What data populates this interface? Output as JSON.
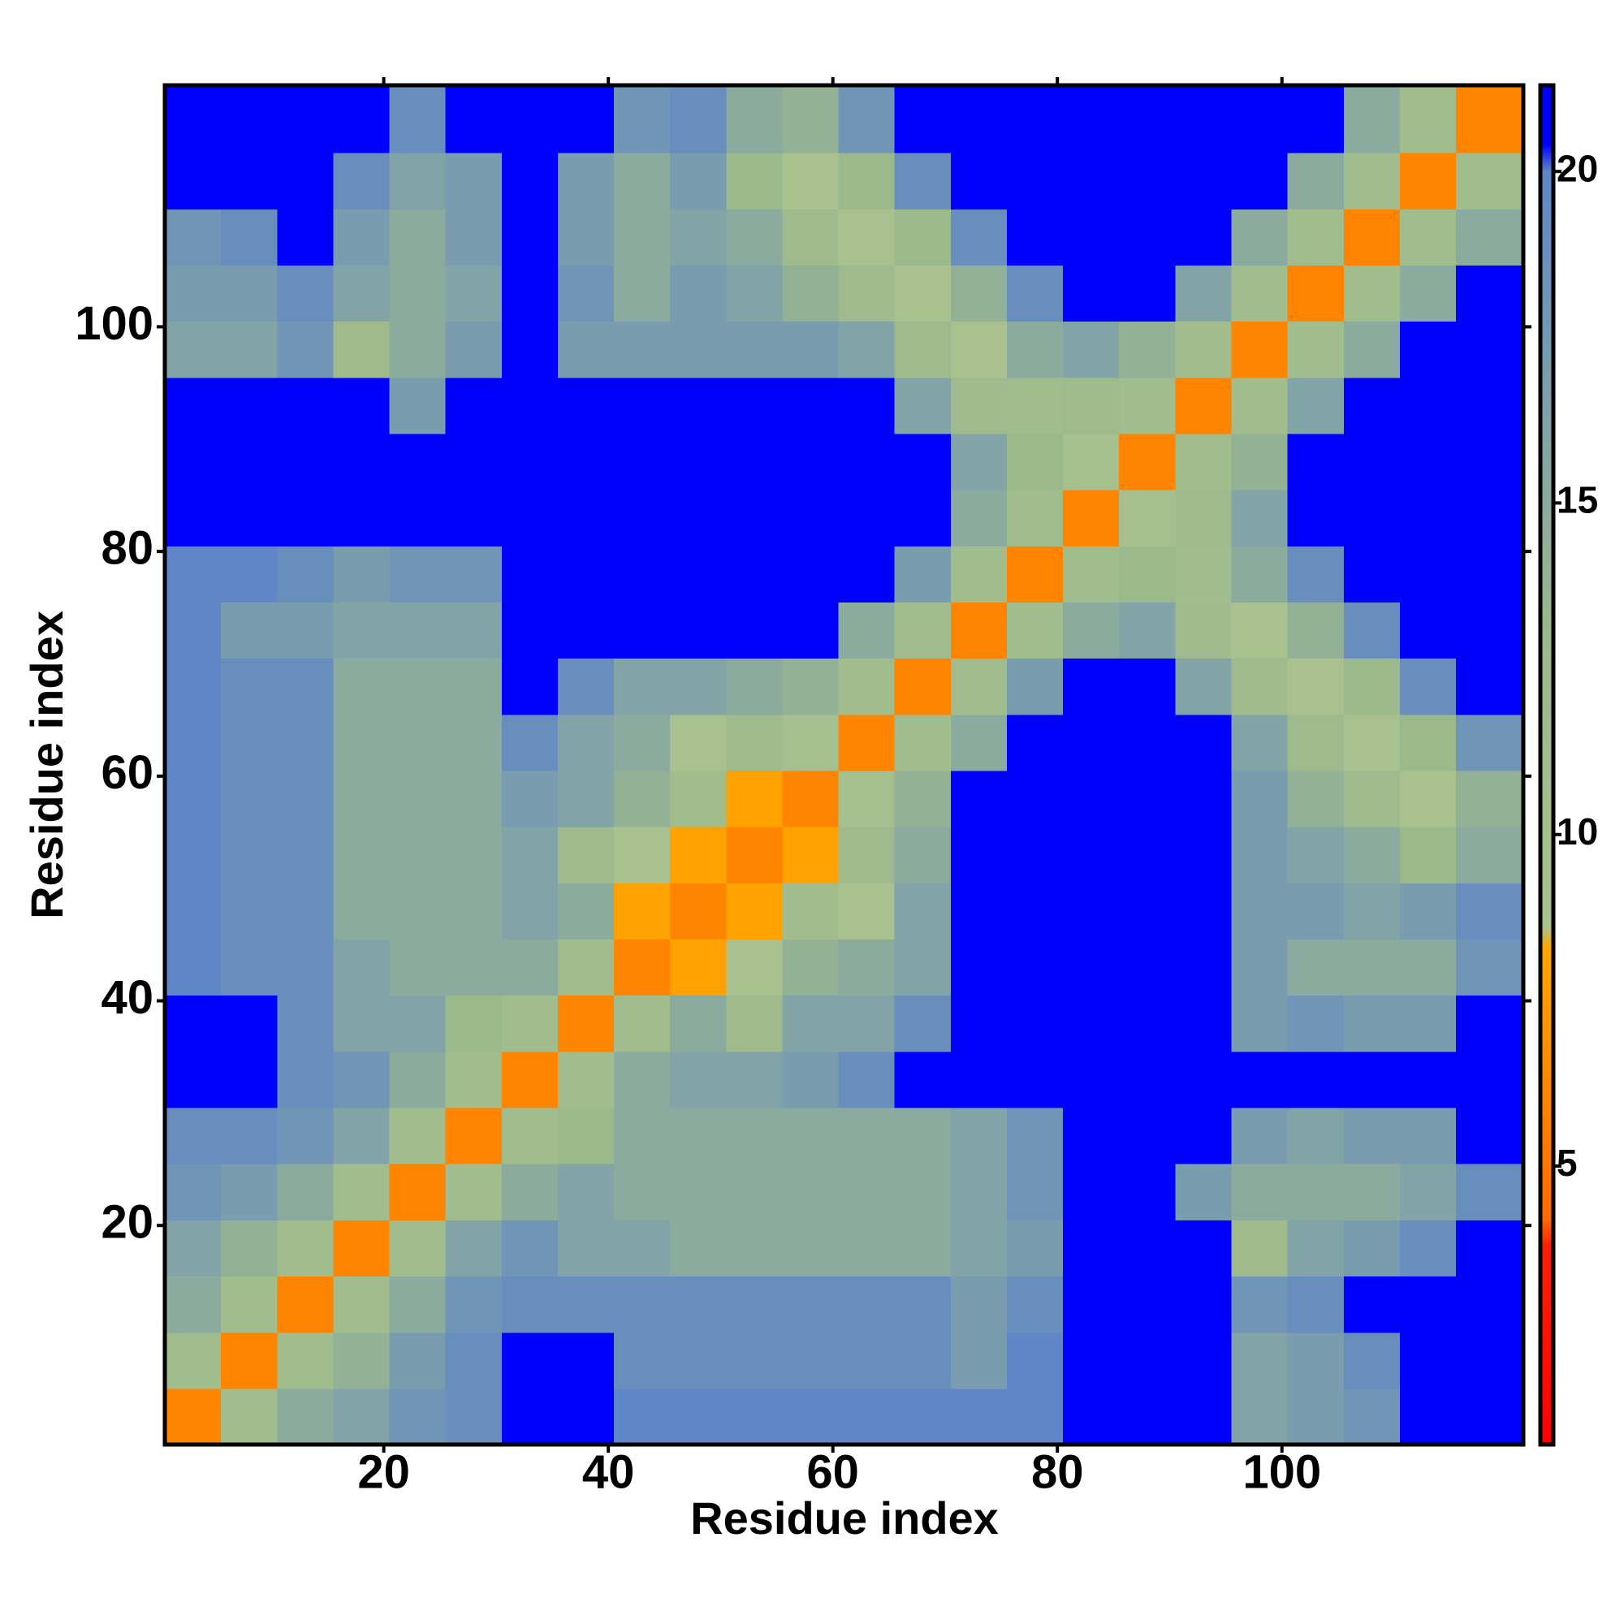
{
  "chart_data": {
    "type": "heatmap",
    "xlabel": "Residue index",
    "ylabel": "Residue index",
    "xlim": [
      0.5,
      121.5
    ],
    "ylim": [
      0.5,
      121.5
    ],
    "xticks": [
      20,
      40,
      60,
      80,
      100
    ],
    "yticks": [
      20,
      40,
      60,
      80,
      100
    ],
    "x_edges": [
      0.5,
      5.5,
      10.5,
      15.5,
      20.5,
      25.5,
      30.5,
      35.5,
      40.5,
      45.5,
      50.5,
      55.5,
      60.5,
      65.5,
      70.5,
      75.5,
      80.5,
      85.5,
      90.5,
      95.5,
      100.5,
      105.5,
      110.5,
      115.5,
      121.5
    ],
    "y_edges": [
      0.5,
      5.5,
      10.5,
      15.5,
      20.5,
      25.5,
      30.5,
      35.5,
      40.5,
      45.5,
      50.5,
      55.5,
      60.5,
      65.5,
      70.5,
      75.5,
      80.5,
      85.5,
      90.5,
      95.5,
      100.5,
      105.5,
      110.5,
      115.5,
      121.5
    ],
    "clim": [
      0.8,
      21.3
    ],
    "cticks": [
      5,
      10,
      15,
      20
    ],
    "colorscale": [
      [
        0.8,
        "#ff0000"
      ],
      [
        3.8,
        "#ff2000"
      ],
      [
        4.2,
        "#ff6a00"
      ],
      [
        8.3,
        "#ffa500"
      ],
      [
        8.6,
        "#a9c28f"
      ],
      [
        13,
        "#9cb98c"
      ],
      [
        15.5,
        "#86a8a2"
      ],
      [
        20,
        "#5f86c6"
      ],
      [
        20.4,
        "#0000ff"
      ],
      [
        21.3,
        "#0000ff"
      ]
    ],
    "z": [
      [
        6,
        11,
        15,
        16,
        18,
        19,
        21,
        21,
        20,
        20,
        20,
        20,
        20,
        20,
        20,
        20,
        21,
        21,
        21,
        16,
        17,
        18,
        21,
        21
      ],
      [
        11,
        6,
        11,
        14,
        17,
        19,
        21,
        21,
        19,
        19,
        19,
        19,
        19,
        19,
        17,
        20,
        21,
        21,
        21,
        16,
        17,
        19,
        21,
        21
      ],
      [
        15,
        11,
        6,
        11,
        15,
        18,
        19,
        19,
        19,
        19,
        19,
        19,
        19,
        19,
        17,
        19,
        21,
        21,
        21,
        18,
        19,
        21,
        21,
        21
      ],
      [
        16,
        14,
        11,
        6,
        11,
        16,
        18,
        16,
        16,
        15,
        15,
        15,
        15,
        15,
        16,
        17,
        21,
        21,
        21,
        12,
        16,
        17,
        19,
        21
      ],
      [
        18,
        17,
        15,
        11,
        6,
        11,
        15,
        16,
        15,
        15,
        15,
        15,
        15,
        15,
        16,
        18,
        21,
        21,
        17,
        15,
        15,
        15,
        16,
        19
      ],
      [
        19,
        19,
        18,
        16,
        11,
        6,
        11,
        13,
        15,
        15,
        15,
        15,
        15,
        15,
        16,
        18,
        21,
        21,
        21,
        17,
        16,
        17,
        17,
        21
      ],
      [
        21,
        21,
        19,
        18,
        15,
        11,
        6,
        11,
        15,
        16,
        16,
        17,
        19,
        21,
        21,
        21,
        21,
        21,
        21,
        21,
        21,
        21,
        21,
        21
      ],
      [
        21,
        21,
        19,
        16,
        16,
        13,
        11,
        6,
        11,
        15,
        12,
        16,
        16,
        19,
        21,
        21,
        21,
        21,
        21,
        17,
        18,
        17,
        17,
        21
      ],
      [
        20,
        19,
        19,
        16,
        15,
        15,
        15,
        11,
        6,
        8,
        9,
        14,
        15,
        16,
        21,
        21,
        21,
        21,
        21,
        17,
        15,
        15,
        15,
        18
      ],
      [
        20,
        19,
        19,
        15,
        15,
        15,
        16,
        15,
        8,
        6,
        8,
        11,
        9,
        16,
        21,
        21,
        21,
        21,
        21,
        17,
        17,
        16,
        17,
        19
      ],
      [
        20,
        19,
        19,
        15,
        15,
        15,
        16,
        12,
        9,
        8,
        6,
        8,
        12,
        15,
        21,
        21,
        21,
        21,
        21,
        17,
        16,
        15,
        13,
        15
      ],
      [
        20,
        19,
        19,
        15,
        15,
        15,
        17,
        16,
        14,
        11,
        8,
        6,
        10,
        14,
        21,
        21,
        21,
        21,
        21,
        17,
        14,
        12,
        9,
        14
      ],
      [
        20,
        19,
        19,
        15,
        15,
        15,
        19,
        16,
        15,
        9,
        12,
        10,
        6,
        11,
        15,
        21,
        21,
        21,
        21,
        16,
        12,
        9,
        13,
        18
      ],
      [
        20,
        19,
        19,
        15,
        15,
        15,
        21,
        19,
        16,
        16,
        15,
        14,
        11,
        6,
        11,
        17,
        21,
        21,
        16,
        12,
        9,
        13,
        19,
        21
      ],
      [
        20,
        17,
        17,
        16,
        16,
        16,
        21,
        21,
        21,
        21,
        21,
        21,
        15,
        11,
        6,
        11,
        15,
        16,
        12,
        9,
        14,
        19,
        21,
        21
      ],
      [
        20,
        20,
        19,
        17,
        18,
        18,
        21,
        21,
        21,
        21,
        21,
        21,
        21,
        17,
        11,
        6,
        11,
        13,
        11,
        15,
        19,
        21,
        21,
        21
      ],
      [
        21,
        21,
        21,
        21,
        21,
        21,
        21,
        21,
        21,
        21,
        21,
        21,
        21,
        21,
        15,
        11,
        6,
        10,
        12,
        16,
        21,
        21,
        21,
        21
      ],
      [
        21,
        21,
        21,
        21,
        21,
        21,
        21,
        21,
        21,
        21,
        21,
        21,
        21,
        21,
        16,
        13,
        10,
        6,
        11,
        14,
        21,
        21,
        21,
        21
      ],
      [
        21,
        21,
        21,
        21,
        17,
        21,
        21,
        21,
        21,
        21,
        21,
        21,
        21,
        16,
        12,
        11,
        12,
        11,
        6,
        11,
        16,
        21,
        21,
        21
      ],
      [
        16,
        16,
        18,
        12,
        15,
        17,
        21,
        17,
        17,
        17,
        17,
        17,
        16,
        12,
        9,
        15,
        16,
        14,
        11,
        6,
        11,
        15,
        21,
        21
      ],
      [
        17,
        17,
        19,
        16,
        15,
        16,
        21,
        18,
        15,
        17,
        16,
        14,
        12,
        9,
        14,
        19,
        21,
        21,
        16,
        11,
        6,
        11,
        15,
        21
      ],
      [
        18,
        19,
        21,
        17,
        15,
        17,
        21,
        17,
        15,
        16,
        15,
        12,
        9,
        13,
        19,
        21,
        21,
        21,
        21,
        15,
        11,
        6,
        11,
        15
      ],
      [
        21,
        21,
        21,
        19,
        16,
        17,
        21,
        17,
        15,
        17,
        13,
        9,
        13,
        19,
        21,
        21,
        21,
        21,
        21,
        21,
        15,
        11,
        6,
        11
      ],
      [
        21,
        21,
        21,
        21,
        19,
        21,
        21,
        21,
        18,
        19,
        15,
        14,
        18,
        21,
        21,
        21,
        21,
        21,
        21,
        21,
        21,
        15,
        11,
        6
      ]
    ]
  }
}
